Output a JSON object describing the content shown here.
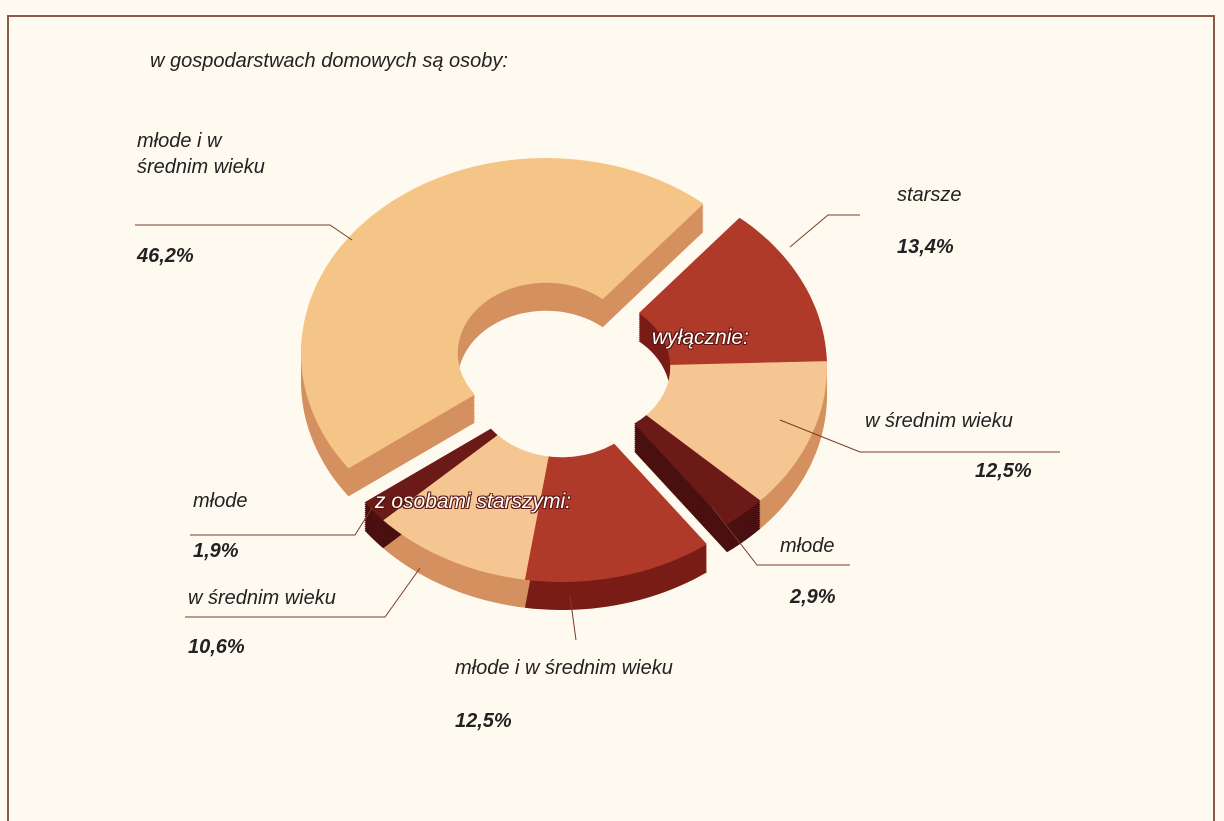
{
  "chart_data": {
    "type": "pie",
    "title": "w gospodarstwach domowych są osoby:",
    "categories": [
      "młode i w średnim wieku",
      "starsze",
      "w średnim wieku",
      "młode",
      "młode i w średnim wieku",
      "w średnim wieku",
      "młode"
    ],
    "values": [
      46.2,
      13.4,
      12.5,
      2.9,
      12.5,
      10.6,
      1.9
    ],
    "value_labels": [
      "46,2%",
      "13,4%",
      "12,5%",
      "2,9%",
      "12,5%",
      "10,6%",
      "1,9%"
    ],
    "colors": [
      "#f5c587",
      "#b03a2a",
      "#f5c592",
      "#6b1a18",
      "#b03a2a",
      "#f5c592",
      "#6b1a18"
    ],
    "side_colors": [
      "#d4905f",
      "#7a1c16",
      "#d4905f",
      "#4a1010",
      "#7a1c16",
      "#d4905f",
      "#4a1010"
    ],
    "annotations": [
      "wyłącznie:",
      "z osobami starszymi:"
    ]
  }
}
